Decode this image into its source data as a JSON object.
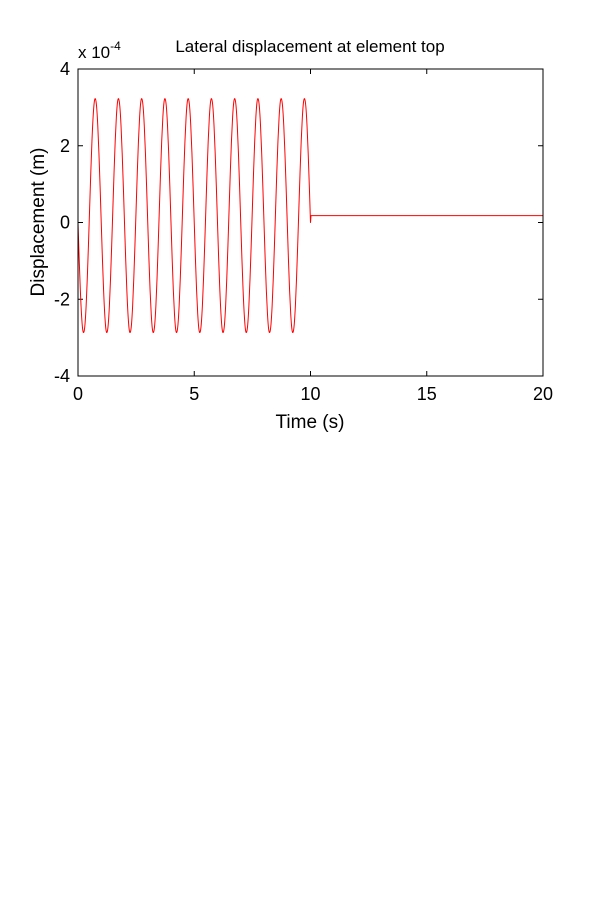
{
  "chart_data": {
    "type": "line",
    "title": "Lateral displacement at element top",
    "xlabel": "Time (s)",
    "ylabel": "Displacement (m)",
    "y_exponent_base": "x 10",
    "y_exponent": "-4",
    "xlim": [
      0,
      20
    ],
    "ylim": [
      -4,
      4
    ],
    "xticks": [
      0,
      5,
      10,
      15,
      20
    ],
    "xtick_labels": [
      "0",
      "5",
      "10",
      "15",
      "20"
    ],
    "yticks": [
      4,
      2,
      0,
      -2,
      -4
    ],
    "ytick_labels": [
      "4",
      "2",
      "0",
      "-2",
      "-4"
    ],
    "grid": false,
    "series": [
      {
        "name": "displacement",
        "color": "#ff0000",
        "t0": 0,
        "dt": 0.05,
        "y": [
          -0.01,
          -0.94,
          -1.76,
          -2.39,
          -2.78,
          -2.86,
          -2.66,
          -2.17,
          -1.45,
          -0.58,
          0.37,
          1.3,
          2.12,
          2.75,
          3.14,
          3.22,
          3.02,
          2.53,
          1.81,
          0.94,
          -0.01,
          -0.94,
          -1.76,
          -2.39,
          -2.78,
          -2.86,
          -2.66,
          -2.17,
          -1.45,
          -0.58,
          0.37,
          1.3,
          2.12,
          2.75,
          3.14,
          3.22,
          3.02,
          2.53,
          1.81,
          0.94,
          -0.01,
          -0.94,
          -1.76,
          -2.39,
          -2.78,
          -2.86,
          -2.66,
          -2.17,
          -1.45,
          -0.58,
          0.37,
          1.3,
          2.12,
          2.75,
          3.14,
          3.22,
          3.02,
          2.53,
          1.81,
          0.94,
          -0.01,
          -0.94,
          -1.76,
          -2.39,
          -2.78,
          -2.86,
          -2.66,
          -2.17,
          -1.45,
          -0.58,
          0.37,
          1.3,
          2.12,
          2.75,
          3.14,
          3.22,
          3.02,
          2.53,
          1.81,
          0.94,
          -0.01,
          -0.94,
          -1.76,
          -2.39,
          -2.78,
          -2.86,
          -2.66,
          -2.17,
          -1.45,
          -0.58,
          0.37,
          1.3,
          2.12,
          2.75,
          3.14,
          3.22,
          3.02,
          2.53,
          1.81,
          0.94,
          -0.01,
          -0.94,
          -1.76,
          -2.39,
          -2.78,
          -2.86,
          -2.66,
          -2.17,
          -1.45,
          -0.58,
          0.37,
          1.3,
          2.12,
          2.75,
          3.14,
          3.22,
          3.02,
          2.53,
          1.81,
          0.94,
          -0.01,
          -0.94,
          -1.76,
          -2.39,
          -2.78,
          -2.86,
          -2.66,
          -2.17,
          -1.45,
          -0.58,
          0.37,
          1.3,
          2.12,
          2.75,
          3.14,
          3.22,
          3.02,
          2.53,
          1.81,
          0.94,
          -0.01,
          -0.94,
          -1.76,
          -2.39,
          -2.78,
          -2.86,
          -2.66,
          -2.17,
          -1.45,
          -0.58,
          0.37,
          1.3,
          2.12,
          2.75,
          3.14,
          3.22,
          3.02,
          2.53,
          1.81,
          0.94,
          -0.01,
          -0.94,
          -1.76,
          -2.39,
          -2.78,
          -2.86,
          -2.66,
          -2.17,
          -1.45,
          -0.58,
          0.37,
          1.3,
          2.12,
          2.75,
          3.14,
          3.22,
          3.02,
          2.53,
          1.81,
          0.94,
          -0.01,
          -0.94,
          -1.76,
          -2.39,
          -2.78,
          -2.86,
          -2.66,
          -2.17,
          -1.45,
          -0.58,
          0.37,
          1.3,
          2.12,
          2.75,
          3.14,
          3.22,
          3.02,
          2.53,
          1.81,
          0.94,
          -0.01
        ],
        "tail": [
          [
            10.02,
            0.18
          ],
          [
            20,
            0.18
          ]
        ]
      }
    ]
  }
}
